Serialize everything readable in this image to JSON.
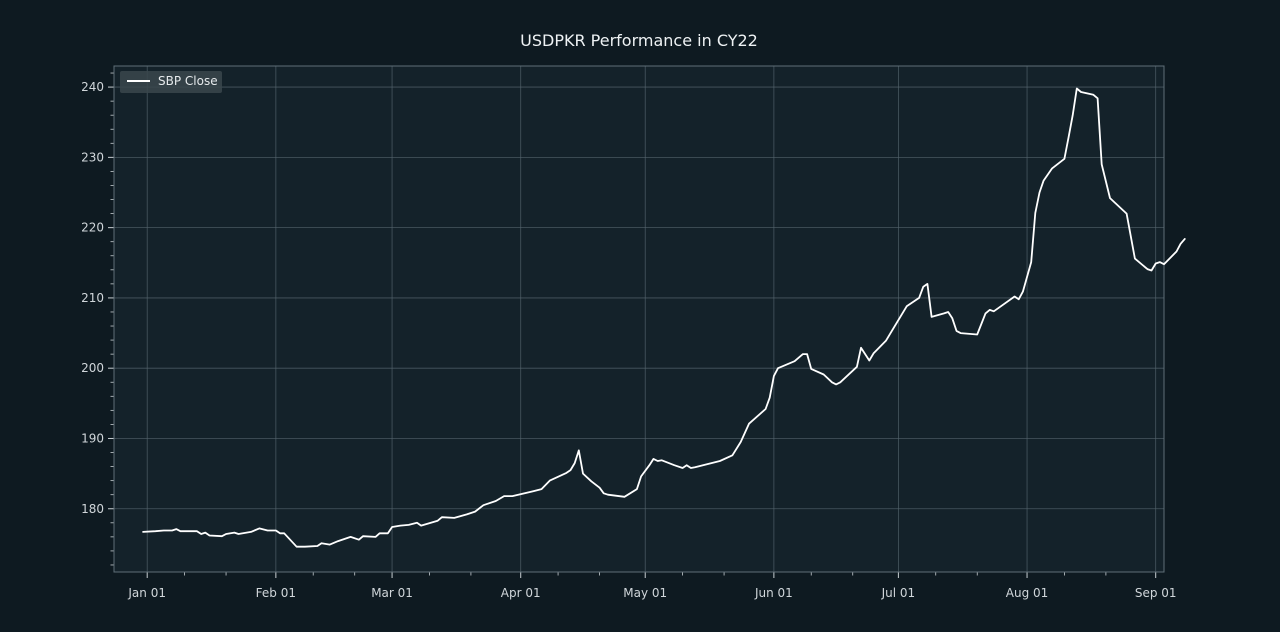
{
  "chart_data": {
    "type": "line",
    "title": "USDPKR Performance in CY22",
    "xlabel": "",
    "ylabel": "",
    "legend": {
      "placement": "top-left"
    },
    "grid": true,
    "xlim": [
      "2021-12-24",
      "2022-09-03"
    ],
    "ylim": [
      171,
      243
    ],
    "x_ticks": [
      {
        "date": "2022-01-01",
        "label": "Jan 01"
      },
      {
        "date": "2022-02-01",
        "label": "Feb 01"
      },
      {
        "date": "2022-03-01",
        "label": "Mar 01"
      },
      {
        "date": "2022-04-01",
        "label": "Apr 01"
      },
      {
        "date": "2022-05-01",
        "label": "May 01"
      },
      {
        "date": "2022-06-01",
        "label": "Jun 01"
      },
      {
        "date": "2022-07-01",
        "label": "Jul 01"
      },
      {
        "date": "2022-08-01",
        "label": "Aug 01"
      },
      {
        "date": "2022-09-01",
        "label": "Sep 01"
      }
    ],
    "y_ticks": [
      180,
      190,
      200,
      210,
      220,
      230,
      240
    ],
    "colors": {
      "background": "#0e1a21",
      "plot_background": "#14222a",
      "line": "#ffffff",
      "grid": "#55656e"
    },
    "series": [
      {
        "name": "SBP Close",
        "points": [
          [
            "2021-12-31",
            176.7
          ],
          [
            "2022-01-03",
            176.8
          ],
          [
            "2022-01-05",
            176.9
          ],
          [
            "2022-01-07",
            176.9
          ],
          [
            "2022-01-08",
            177.1
          ],
          [
            "2022-01-09",
            176.8
          ],
          [
            "2022-01-11",
            176.8
          ],
          [
            "2022-01-13",
            176.8
          ],
          [
            "2022-01-14",
            176.4
          ],
          [
            "2022-01-15",
            176.6
          ],
          [
            "2022-01-16",
            176.2
          ],
          [
            "2022-01-19",
            176.1
          ],
          [
            "2022-01-20",
            176.4
          ],
          [
            "2022-01-22",
            176.6
          ],
          [
            "2022-01-23",
            176.4
          ],
          [
            "2022-01-26",
            176.7
          ],
          [
            "2022-01-28",
            177.2
          ],
          [
            "2022-01-30",
            176.9
          ],
          [
            "2022-02-01",
            176.9
          ],
          [
            "2022-02-02",
            176.5
          ],
          [
            "2022-02-03",
            176.5
          ],
          [
            "2022-02-06",
            174.6
          ],
          [
            "2022-02-08",
            174.6
          ],
          [
            "2022-02-11",
            174.7
          ],
          [
            "2022-02-12",
            175.1
          ],
          [
            "2022-02-14",
            174.9
          ],
          [
            "2022-02-16",
            175.4
          ],
          [
            "2022-02-19",
            176.0
          ],
          [
            "2022-02-21",
            175.6
          ],
          [
            "2022-02-22",
            176.1
          ],
          [
            "2022-02-25",
            176.0
          ],
          [
            "2022-02-26",
            176.5
          ],
          [
            "2022-02-28",
            176.5
          ],
          [
            "2022-03-01",
            177.4
          ],
          [
            "2022-03-03",
            177.6
          ],
          [
            "2022-03-05",
            177.7
          ],
          [
            "2022-03-07",
            178.0
          ],
          [
            "2022-03-08",
            177.6
          ],
          [
            "2022-03-12",
            178.3
          ],
          [
            "2022-03-13",
            178.8
          ],
          [
            "2022-03-16",
            178.7
          ],
          [
            "2022-03-19",
            179.2
          ],
          [
            "2022-03-21",
            179.6
          ],
          [
            "2022-03-23",
            180.5
          ],
          [
            "2022-03-26",
            181.1
          ],
          [
            "2022-03-28",
            181.8
          ],
          [
            "2022-03-30",
            181.8
          ],
          [
            "2022-04-04",
            182.5
          ],
          [
            "2022-04-06",
            182.8
          ],
          [
            "2022-04-08",
            184.0
          ],
          [
            "2022-04-12",
            185.1
          ],
          [
            "2022-04-13",
            185.5
          ],
          [
            "2022-04-14",
            186.5
          ],
          [
            "2022-04-15",
            188.3
          ],
          [
            "2022-04-16",
            185.0
          ],
          [
            "2022-04-18",
            183.9
          ],
          [
            "2022-04-20",
            183.0
          ],
          [
            "2022-04-21",
            182.2
          ],
          [
            "2022-04-22",
            182.0
          ],
          [
            "2022-04-26",
            181.7
          ],
          [
            "2022-04-29",
            182.8
          ],
          [
            "2022-04-30",
            184.6
          ],
          [
            "2022-05-02",
            186.2
          ],
          [
            "2022-05-03",
            187.1
          ],
          [
            "2022-05-04",
            186.8
          ],
          [
            "2022-05-05",
            186.9
          ],
          [
            "2022-05-08",
            186.2
          ],
          [
            "2022-05-10",
            185.8
          ],
          [
            "2022-05-11",
            186.2
          ],
          [
            "2022-05-12",
            185.8
          ],
          [
            "2022-05-13",
            185.9
          ],
          [
            "2022-05-19",
            186.8
          ],
          [
            "2022-05-22",
            187.6
          ],
          [
            "2022-05-24",
            189.5
          ],
          [
            "2022-05-26",
            192.1
          ],
          [
            "2022-05-30",
            194.2
          ],
          [
            "2022-05-31",
            195.8
          ],
          [
            "2022-06-01",
            198.9
          ],
          [
            "2022-06-02",
            200.0
          ],
          [
            "2022-06-06",
            201.0
          ],
          [
            "2022-06-08",
            202.0
          ],
          [
            "2022-06-09",
            202.0
          ],
          [
            "2022-06-10",
            199.9
          ],
          [
            "2022-06-13",
            199.1
          ],
          [
            "2022-06-15",
            198.0
          ],
          [
            "2022-06-16",
            197.7
          ],
          [
            "2022-06-17",
            198.0
          ],
          [
            "2022-06-21",
            200.2
          ],
          [
            "2022-06-22",
            202.9
          ],
          [
            "2022-06-24",
            201.1
          ],
          [
            "2022-06-25",
            202.1
          ],
          [
            "2022-06-28",
            203.9
          ],
          [
            "2022-07-03",
            208.8
          ],
          [
            "2022-07-06",
            210.0
          ],
          [
            "2022-07-07",
            211.6
          ],
          [
            "2022-07-08",
            212.0
          ],
          [
            "2022-07-09",
            207.3
          ],
          [
            "2022-07-12",
            207.8
          ],
          [
            "2022-07-13",
            208.0
          ],
          [
            "2022-07-14",
            207.1
          ],
          [
            "2022-07-15",
            205.3
          ],
          [
            "2022-07-16",
            205.0
          ],
          [
            "2022-07-20",
            204.8
          ],
          [
            "2022-07-22",
            207.8
          ],
          [
            "2022-07-23",
            208.3
          ],
          [
            "2022-07-24",
            208.1
          ],
          [
            "2022-07-29",
            210.2
          ],
          [
            "2022-07-30",
            209.8
          ],
          [
            "2022-07-31",
            210.9
          ],
          [
            "2022-08-02",
            215.1
          ],
          [
            "2022-08-03",
            222.1
          ],
          [
            "2022-08-04",
            225.0
          ],
          [
            "2022-08-05",
            226.7
          ],
          [
            "2022-08-07",
            228.4
          ],
          [
            "2022-08-10",
            229.8
          ],
          [
            "2022-08-11",
            232.8
          ],
          [
            "2022-08-12",
            236.0
          ],
          [
            "2022-08-13",
            239.8
          ],
          [
            "2022-08-14",
            239.3
          ],
          [
            "2022-08-17",
            238.9
          ],
          [
            "2022-08-18",
            238.4
          ],
          [
            "2022-08-19",
            229.0
          ],
          [
            "2022-08-21",
            224.2
          ],
          [
            "2022-08-25",
            222.0
          ],
          [
            "2022-08-27",
            215.6
          ],
          [
            "2022-08-30",
            214.1
          ],
          [
            "2022-08-31",
            213.9
          ],
          [
            "2022-09-01",
            214.9
          ],
          [
            "2022-09-02",
            215.1
          ],
          [
            "2022-09-03",
            214.8
          ],
          [
            "2022-09-06",
            216.6
          ],
          [
            "2022-09-07",
            217.7
          ],
          [
            "2022-09-08",
            218.4
          ]
        ]
      }
    ]
  }
}
